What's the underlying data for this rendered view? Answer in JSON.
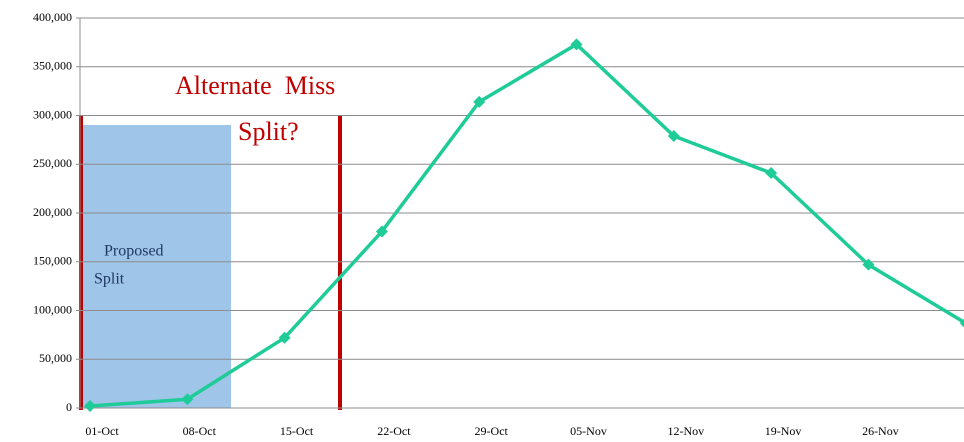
{
  "chart_data": {
    "type": "line",
    "categories": [
      "01-Oct",
      "08-Oct",
      "15-Oct",
      "22-Oct",
      "29-Oct",
      "05-Nov",
      "12-Nov",
      "19-Nov",
      "26-Nov",
      null
    ],
    "series": [
      {
        "color": "#1fcc97",
        "values": [
          2000,
          9000,
          72000,
          181000,
          314000,
          373000,
          279000,
          241000,
          147000,
          87000
        ]
      }
    ],
    "ylim": [
      0,
      400000
    ],
    "yticks": [
      {
        "value": 0,
        "label": "0"
      },
      {
        "value": 50000,
        "label": "50,000"
      },
      {
        "value": 100000,
        "label": "100,000"
      },
      {
        "value": 150000,
        "label": "150,000"
      },
      {
        "value": 200000,
        "label": "200,000"
      },
      {
        "value": 250000,
        "label": "250,000"
      },
      {
        "value": 300000,
        "label": "300,000"
      },
      {
        "value": 350000,
        "label": "350,000"
      },
      {
        "value": 400000,
        "label": "400,000"
      }
    ],
    "grid": true,
    "annotations": [
      "Alternate  Miss",
      "Split?",
      "Proposed",
      "Split"
    ]
  }
}
